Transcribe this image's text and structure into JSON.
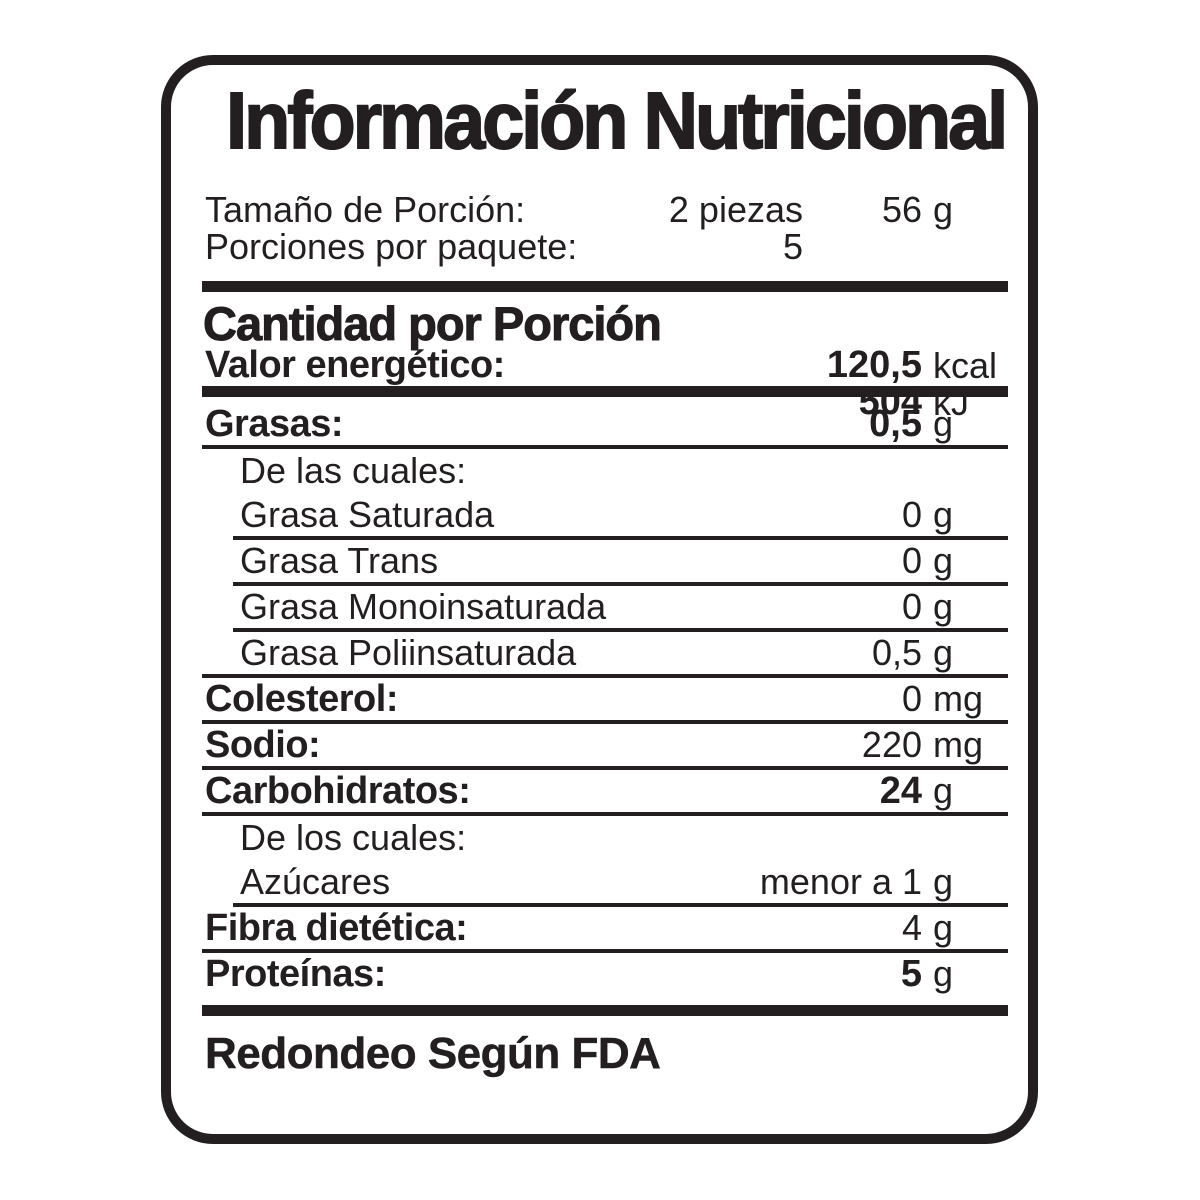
{
  "colors": {
    "ink": "#231f20",
    "background": "#ffffff"
  },
  "label": {
    "title": "Información Nutricional",
    "serving": {
      "size_label": "Tamaño de Porción:",
      "size_value": "2 piezas",
      "size_amount": "56",
      "size_unit": "g",
      "servings_label": "Porciones por paquete:",
      "servings_value": "5"
    },
    "amount_heading": "Cantidad por Porción",
    "energy": {
      "label": "Valor energético:",
      "kcal_amount": "120,5",
      "kcal_unit": "kcal",
      "kj_amount": "504",
      "kj_unit": "kJ"
    },
    "nutrients": [
      {
        "label": "Grasas:",
        "amount": "0,5",
        "unit": "g"
      },
      {
        "label": "De las cuales:",
        "amount": "",
        "unit": ""
      },
      {
        "label": "Grasa Saturada",
        "amount": "0",
        "unit": "g"
      },
      {
        "label": "Grasa Trans",
        "amount": "0",
        "unit": "g"
      },
      {
        "label": "Grasa Monoinsaturada",
        "amount": "0",
        "unit": "g"
      },
      {
        "label": "Grasa Poliinsaturada",
        "amount": "0,5",
        "unit": "g"
      },
      {
        "label": "Colesterol:",
        "amount": "0",
        "unit": "mg"
      },
      {
        "label": "Sodio:",
        "amount": "220",
        "unit": "mg"
      },
      {
        "label": "Carbohidratos:",
        "amount": "24",
        "unit": "g"
      },
      {
        "label": "De los cuales:",
        "amount": "",
        "unit": ""
      },
      {
        "label": "Azúcares",
        "amount": "menor a 1",
        "unit": "g"
      },
      {
        "label": "Fibra dietética:",
        "amount": "4",
        "unit": "g"
      },
      {
        "label": "Proteínas:",
        "amount": "5",
        "unit": "g"
      }
    ],
    "footnote": "Redondeo Según FDA"
  }
}
